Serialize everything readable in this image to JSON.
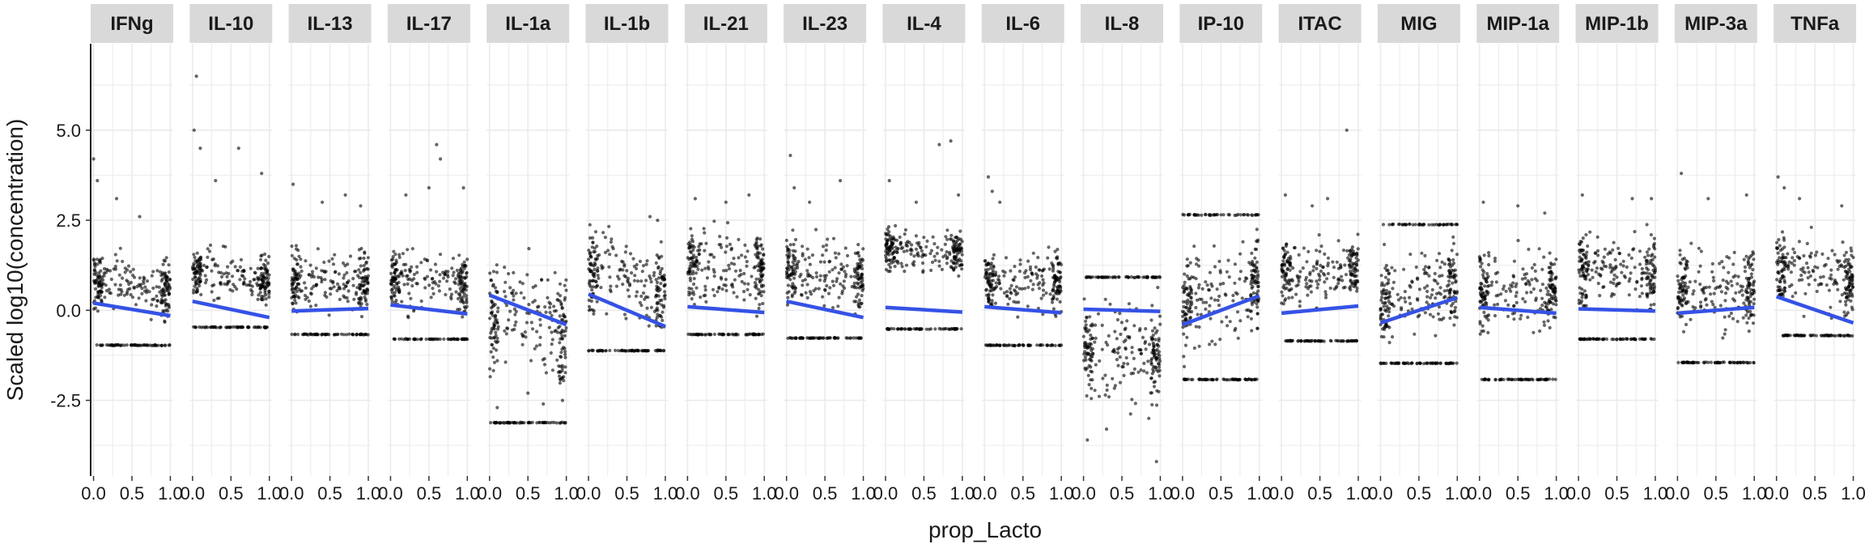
{
  "chart_data": {
    "type": "scatter",
    "xlabel": "prop_Lacto",
    "ylabel": "Scaled log10(concentration)",
    "xlim": [
      0,
      1
    ],
    "ylim": [
      -4.6,
      7.4
    ],
    "x_ticks": [
      0.0,
      0.5,
      1.0
    ],
    "x_tick_labels": [
      "0.0",
      "0.5",
      "1.0"
    ],
    "y_ticks": [
      -2.5,
      0.0,
      2.5,
      5.0
    ],
    "y_tick_labels": [
      "-2.5",
      "0.0",
      "2.5",
      "5.0"
    ],
    "grid": true,
    "point_color": "#000000",
    "line_color": "#3552e6",
    "strip_fill": "#d9d9d9",
    "panels": [
      {
        "label": "IFNg",
        "trend": [
          0.2,
          -0.15
        ],
        "floor": -0.97,
        "spread": [
          -0.4,
          1.8
        ],
        "outliers": [
          [
            0.0,
            4.2
          ],
          [
            0.05,
            3.6
          ],
          [
            0.3,
            3.1
          ],
          [
            0.6,
            2.6
          ]
        ]
      },
      {
        "label": "IL-10",
        "trend": [
          0.25,
          -0.2
        ],
        "floor": -0.47,
        "spread": [
          -0.1,
          1.9
        ],
        "outliers": [
          [
            0.05,
            6.5
          ],
          [
            0.02,
            5.0
          ],
          [
            0.1,
            4.5
          ],
          [
            0.6,
            4.5
          ],
          [
            0.9,
            3.8
          ],
          [
            0.3,
            3.6
          ]
        ]
      },
      {
        "label": "IL-13",
        "trend": [
          -0.02,
          0.05
        ],
        "floor": -0.67,
        "spread": [
          -0.4,
          2.0
        ],
        "outliers": [
          [
            0.02,
            3.5
          ],
          [
            0.4,
            3.0
          ],
          [
            0.7,
            3.2
          ],
          [
            0.9,
            2.9
          ]
        ]
      },
      {
        "label": "IL-17",
        "trend": [
          0.15,
          -0.1
        ],
        "floor": -0.8,
        "spread": [
          -0.4,
          2.0
        ],
        "outliers": [
          [
            0.6,
            4.6
          ],
          [
            0.65,
            4.2
          ],
          [
            0.5,
            3.4
          ],
          [
            0.95,
            3.4
          ],
          [
            0.2,
            3.2
          ]
        ]
      },
      {
        "label": "IL-1a",
        "trend": [
          0.42,
          -0.4
        ],
        "floor": -3.12,
        "spread": [
          -2.6,
          2.0
        ],
        "outliers": [
          [
            0.1,
            -2.7
          ],
          [
            0.7,
            -2.6
          ],
          [
            0.95,
            -2.5
          ],
          [
            0.5,
            -2.3
          ]
        ]
      },
      {
        "label": "IL-1b",
        "trend": [
          0.45,
          -0.45
        ],
        "floor": -1.12,
        "spread": [
          -0.9,
          2.5
        ],
        "outliers": [
          [
            0.8,
            2.6
          ],
          [
            0.9,
            2.5
          ]
        ]
      },
      {
        "label": "IL-21",
        "trend": [
          0.1,
          -0.06
        ],
        "floor": -0.67,
        "spread": [
          -0.3,
          2.7
        ],
        "outliers": [
          [
            0.1,
            3.1
          ],
          [
            0.5,
            3.0
          ],
          [
            0.8,
            3.2
          ]
        ]
      },
      {
        "label": "IL-23",
        "trend": [
          0.25,
          -0.2
        ],
        "floor": -0.77,
        "spread": [
          -0.3,
          2.3
        ],
        "outliers": [
          [
            0.05,
            4.3
          ],
          [
            0.1,
            3.4
          ],
          [
            0.7,
            3.6
          ],
          [
            0.3,
            3.0
          ]
        ]
      },
      {
        "label": "IL-4",
        "trend": [
          0.08,
          -0.05
        ],
        "floor": -0.52,
        "spread": [
          0.85,
          2.4
        ],
        "outliers": [
          [
            0.85,
            4.7
          ],
          [
            0.7,
            4.6
          ],
          [
            0.05,
            3.6
          ],
          [
            0.95,
            3.2
          ],
          [
            0.4,
            3.0
          ]
        ]
      },
      {
        "label": "IL-6",
        "trend": [
          0.1,
          -0.07
        ],
        "floor": -0.97,
        "spread": [
          -0.5,
          2.1
        ],
        "outliers": [
          [
            0.05,
            3.7
          ],
          [
            0.1,
            3.3
          ],
          [
            0.2,
            3.0
          ]
        ]
      },
      {
        "label": "IL-8",
        "trend": [
          0.03,
          -0.03
        ],
        "floor": 0.92,
        "spread": [
          -3.0,
          0.8
        ],
        "outliers": [
          [
            0.95,
            -4.2
          ],
          [
            0.05,
            -3.6
          ],
          [
            0.3,
            -3.3
          ],
          [
            0.85,
            -3.0
          ]
        ]
      },
      {
        "label": "IP-10",
        "trend": [
          -0.4,
          0.4
        ],
        "floor": -1.92,
        "spread": [
          -1.6,
          2.4
        ],
        "cap": 2.65,
        "outliers": []
      },
      {
        "label": "ITAC",
        "trend": [
          -0.08,
          0.12
        ],
        "floor": -0.85,
        "spread": [
          -0.3,
          2.4
        ],
        "outliers": [
          [
            0.85,
            5.0
          ],
          [
            0.05,
            3.2
          ],
          [
            0.6,
            3.1
          ],
          [
            0.4,
            2.9
          ]
        ]
      },
      {
        "label": "MIG",
        "trend": [
          -0.35,
          0.35
        ],
        "floor": -1.47,
        "spread": [
          -1.1,
          2.1
        ],
        "cap": 2.38,
        "outliers": []
      },
      {
        "label": "MIP-1a",
        "trend": [
          0.08,
          -0.08
        ],
        "floor": -1.92,
        "spread": [
          -1.1,
          2.1
        ],
        "outliers": [
          [
            0.05,
            3.0
          ],
          [
            0.5,
            2.9
          ],
          [
            0.85,
            2.7
          ]
        ]
      },
      {
        "label": "MIP-1b",
        "trend": [
          0.04,
          -0.02
        ],
        "floor": -0.8,
        "spread": [
          -0.3,
          2.5
        ],
        "outliers": [
          [
            0.05,
            3.2
          ],
          [
            0.7,
            3.1
          ],
          [
            0.95,
            3.1
          ]
        ]
      },
      {
        "label": "MIP-3a",
        "trend": [
          -0.08,
          0.08
        ],
        "floor": -1.45,
        "spread": [
          -1.0,
          2.3
        ],
        "outliers": [
          [
            0.05,
            3.8
          ],
          [
            0.4,
            3.1
          ],
          [
            0.9,
            3.2
          ]
        ]
      },
      {
        "label": "TNFa",
        "trend": [
          0.38,
          -0.35
        ],
        "floor": -0.7,
        "spread": [
          -0.3,
          2.4
        ],
        "outliers": [
          [
            0.02,
            3.7
          ],
          [
            0.1,
            3.4
          ],
          [
            0.3,
            3.1
          ],
          [
            0.85,
            2.9
          ]
        ]
      }
    ]
  }
}
